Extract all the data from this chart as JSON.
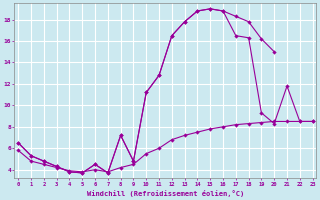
{
  "xlabel": "Windchill (Refroidissement éolien,°C)",
  "bg_color": "#cce9f0",
  "grid_color": "#ffffff",
  "line_color": "#990099",
  "series1_x": [
    0,
    1,
    2,
    3,
    4,
    5,
    6,
    7,
    8,
    9,
    10,
    11,
    12,
    13,
    14,
    15,
    16,
    17,
    18,
    19,
    20
  ],
  "series1_y": [
    6.5,
    5.3,
    4.8,
    4.3,
    3.8,
    3.7,
    4.5,
    3.7,
    7.2,
    4.8,
    11.2,
    12.8,
    16.5,
    17.8,
    18.8,
    19.0,
    18.8,
    18.3,
    17.8,
    16.2,
    15.0
  ],
  "series2_x": [
    0,
    1,
    2,
    3,
    4,
    5,
    6,
    7,
    8,
    9,
    10,
    11,
    12,
    13,
    14,
    15,
    16,
    17,
    18,
    19,
    20,
    21,
    22,
    23
  ],
  "series2_y": [
    6.5,
    5.3,
    4.8,
    4.3,
    3.8,
    3.7,
    4.5,
    3.7,
    7.2,
    4.8,
    11.2,
    12.8,
    16.5,
    17.8,
    18.8,
    19.0,
    18.8,
    16.5,
    16.3,
    9.3,
    8.3,
    11.8,
    8.5,
    8.5
  ],
  "series3_x": [
    0,
    1,
    2,
    3,
    4,
    5,
    6,
    7,
    8,
    9,
    10,
    11,
    12,
    13,
    14,
    15,
    16,
    17,
    18,
    19,
    20,
    21,
    22,
    23
  ],
  "series3_y": [
    5.8,
    4.8,
    4.5,
    4.2,
    3.9,
    3.8,
    4.0,
    3.8,
    4.2,
    4.5,
    5.5,
    6.0,
    6.8,
    7.2,
    7.5,
    7.8,
    8.0,
    8.2,
    8.3,
    8.4,
    8.5,
    8.5,
    8.5,
    8.5
  ],
  "yticks": [
    4,
    6,
    8,
    10,
    12,
    14,
    16,
    18
  ],
  "xticks": [
    0,
    1,
    2,
    3,
    4,
    5,
    6,
    7,
    8,
    9,
    10,
    11,
    12,
    13,
    14,
    15,
    16,
    17,
    18,
    19,
    20,
    21,
    22,
    23
  ],
  "xlim": [
    -0.3,
    23.3
  ],
  "ylim": [
    3.2,
    19.5
  ]
}
